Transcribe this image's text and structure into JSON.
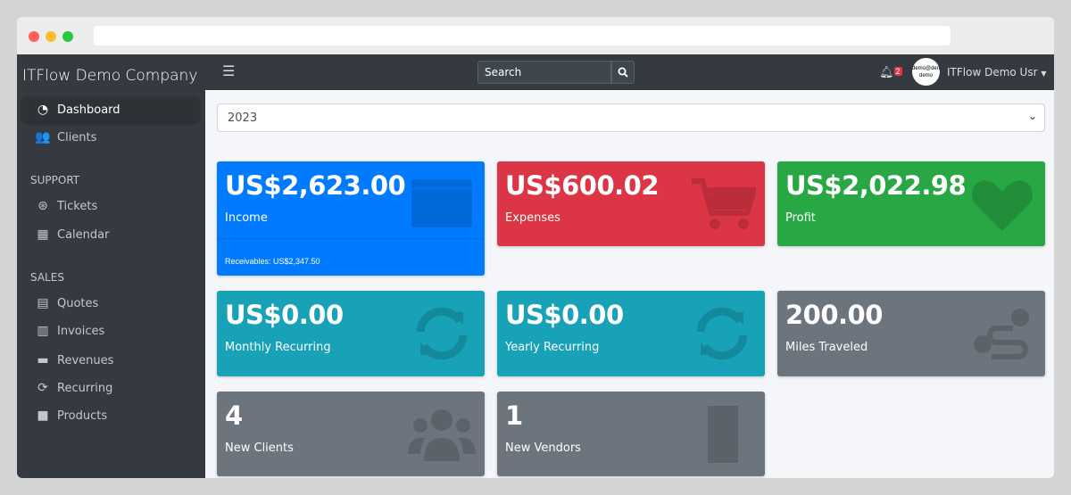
{
  "sidebar": {
    "brand": "ITFlow Demo Company",
    "items": [
      {
        "label": "Dashboard",
        "icon": "tachometer-icon"
      },
      {
        "label": "Clients",
        "icon": "users-icon"
      }
    ],
    "support_header": "SUPPORT",
    "support": [
      {
        "label": "Tickets",
        "icon": "life-ring-icon"
      },
      {
        "label": "Calendar",
        "icon": "calendar-icon"
      }
    ],
    "sales_header": "SALES",
    "sales": [
      {
        "label": "Quotes",
        "icon": "file-icon"
      },
      {
        "label": "Invoices",
        "icon": "invoice-icon"
      },
      {
        "label": "Revenues",
        "icon": "credit-card-icon"
      },
      {
        "label": "Recurring",
        "icon": "sync-icon"
      },
      {
        "label": "Products",
        "icon": "box-icon"
      }
    ]
  },
  "topbar": {
    "search_placeholder": "Search",
    "notification_count": "2",
    "avatar_text": "demo@demo demo",
    "user_name": "ITFlow Demo Usr"
  },
  "year_select": "2023",
  "cards": [
    {
      "value": "US$2,623.00",
      "label": "Income",
      "footer": "Receivables: US$2,347.50",
      "color": "#007bff"
    },
    {
      "value": "US$600.02",
      "label": "Expenses",
      "color": "#dc3545"
    },
    {
      "value": "US$2,022.98",
      "label": "Profit",
      "color": "#28a745"
    },
    {
      "value": "US$0.00",
      "label": "Monthly Recurring",
      "color": "#17a2b8"
    },
    {
      "value": "US$0.00",
      "label": "Yearly Recurring",
      "color": "#17a2b8"
    },
    {
      "value": "200.00",
      "label": "Miles Traveled",
      "color": "#6c757d"
    },
    {
      "value": "4",
      "label": "New Clients",
      "color": "#6c757d"
    },
    {
      "value": "1",
      "label": "New Vendors",
      "color": "#6c757d"
    }
  ]
}
